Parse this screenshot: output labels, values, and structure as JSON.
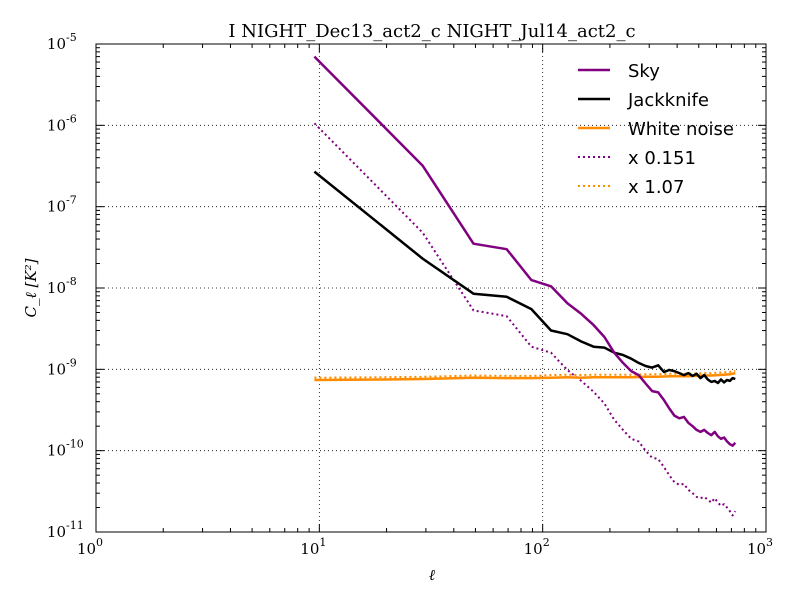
{
  "chart_data": {
    "type": "line",
    "title": "I NIGHT_Dec13_act2_c NIGHT_Jul14_act2_c",
    "xlabel": "ℓ",
    "ylabel": "C_ℓ [K²]",
    "xscale": "log",
    "yscale": "log",
    "xlim": [
      1,
      1000
    ],
    "ylim": [
      1e-11,
      1e-05
    ],
    "grid": true,
    "legend_position": "top-right",
    "x_ticks": [
      {
        "value": 1,
        "base": "10",
        "exp": "0"
      },
      {
        "value": 10,
        "base": "10",
        "exp": "1"
      },
      {
        "value": 100,
        "base": "10",
        "exp": "2"
      },
      {
        "value": 1000,
        "base": "10",
        "exp": "3"
      }
    ],
    "y_ticks": [
      {
        "value": 1e-11,
        "base": "10",
        "exp": "-11"
      },
      {
        "value": 1e-10,
        "base": "10",
        "exp": "-10"
      },
      {
        "value": 1e-09,
        "base": "10",
        "exp": "-9"
      },
      {
        "value": 1e-08,
        "base": "10",
        "exp": "-8"
      },
      {
        "value": 1e-07,
        "base": "10",
        "exp": "-7"
      },
      {
        "value": 1e-06,
        "base": "10",
        "exp": "-6"
      },
      {
        "value": 1e-05,
        "base": "10",
        "exp": "-5"
      }
    ],
    "series": [
      {
        "name": "Sky",
        "color": "#800080",
        "style": "solid",
        "x": [
          9.5,
          29,
          49,
          69,
          89,
          109,
          129,
          149,
          169,
          189,
          209,
          229,
          249,
          269,
          289,
          309,
          329,
          349,
          369,
          389,
          409,
          429,
          449,
          469,
          489,
          509,
          529,
          549,
          569,
          589,
          609,
          629,
          649,
          669,
          689,
          709,
          729
        ],
        "y": [
          7e-06,
          3.2e-07,
          3.5e-08,
          3e-08,
          1.25e-08,
          1.05e-08,
          6.5e-09,
          4.8e-09,
          3.5e-09,
          2.5e-09,
          1.6e-09,
          1.2e-09,
          9.5e-10,
          8.5e-10,
          6.7e-10,
          5.4e-10,
          5.2e-10,
          4.2e-10,
          3.3e-10,
          2.7e-10,
          2.5e-10,
          2.6e-10,
          2.2e-10,
          2e-10,
          1.8e-10,
          1.7e-10,
          1.8e-10,
          1.65e-10,
          1.55e-10,
          1.7e-10,
          1.5e-10,
          1.4e-10,
          1.45e-10,
          1.3e-10,
          1.2e-10,
          1.15e-10,
          1.25e-10
        ]
      },
      {
        "name": "Jackknife",
        "color": "#000000",
        "style": "solid",
        "x": [
          9.5,
          29,
          49,
          69,
          89,
          109,
          129,
          149,
          169,
          189,
          209,
          229,
          249,
          269,
          289,
          309,
          329,
          349,
          369,
          389,
          409,
          429,
          449,
          469,
          489,
          509,
          529,
          549,
          569,
          589,
          609,
          629,
          649,
          669,
          689,
          709,
          729
        ],
        "y": [
          2.7e-07,
          2.3e-08,
          8.5e-09,
          7.8e-09,
          5.5e-09,
          3e-09,
          2.7e-09,
          2.2e-09,
          1.9e-09,
          1.85e-09,
          1.6e-09,
          1.5e-09,
          1.35e-09,
          1.2e-09,
          1.1e-09,
          1.05e-09,
          1.12e-09,
          9.3e-10,
          9.8e-10,
          9.5e-10,
          9e-10,
          8.5e-10,
          9e-10,
          8.3e-10,
          8.8e-10,
          7.8e-10,
          8.5e-10,
          7.5e-10,
          7e-10,
          7.2e-10,
          6.8e-10,
          7.5e-10,
          6.9e-10,
          7.4e-10,
          7.2e-10,
          7.8e-10,
          7.6e-10
        ]
      },
      {
        "name": "White noise",
        "color": "#ff8c00",
        "style": "solid",
        "x": [
          9.5,
          20,
          29,
          49,
          69,
          89,
          109,
          129,
          149,
          169,
          189,
          209,
          249,
          289,
          329,
          369,
          409,
          449,
          489,
          529,
          569,
          609,
          649,
          689,
          729
        ],
        "y": [
          7.4e-10,
          7.5e-10,
          7.6e-10,
          7.9e-10,
          7.8e-10,
          7.8e-10,
          7.9e-10,
          8e-10,
          7.9e-10,
          8e-10,
          8e-10,
          8e-10,
          8e-10,
          8.1e-10,
          8.1e-10,
          8.2e-10,
          8.2e-10,
          8.2e-10,
          8.3e-10,
          8.4e-10,
          8.4e-10,
          8.5e-10,
          8.6e-10,
          8.7e-10,
          9e-10
        ]
      },
      {
        "name": "x 0.151",
        "color": "#800080",
        "style": "dotted",
        "x": [
          9.5,
          29,
          49,
          69,
          89,
          109,
          129,
          149,
          169,
          189,
          209,
          229,
          249,
          269,
          289,
          309,
          329,
          349,
          369,
          389,
          409,
          429,
          449,
          469,
          489,
          509,
          529,
          549,
          569,
          589,
          609,
          629,
          649,
          669,
          689,
          709,
          729
        ],
        "y": [
          1.06e-06,
          4.8e-08,
          5.3e-09,
          4.5e-09,
          1.9e-09,
          1.6e-09,
          9.8e-10,
          7.2e-10,
          5.3e-10,
          3.8e-10,
          2.4e-10,
          1.8e-10,
          1.4e-10,
          1.3e-10,
          1e-10,
          8.2e-11,
          7.9e-11,
          6.3e-11,
          5e-11,
          4.1e-11,
          3.8e-11,
          3.9e-11,
          3.3e-11,
          3e-11,
          2.7e-11,
          2.6e-11,
          2.7e-11,
          2.5e-11,
          2.3e-11,
          2.6e-11,
          2.3e-11,
          2.1e-11,
          2.2e-11,
          2e-11,
          1.8e-11,
          1.6e-11,
          1.8e-11
        ]
      },
      {
        "name": "x 1.07",
        "color": "#ff8c00",
        "style": "dotted",
        "x": [
          9.5,
          20,
          29,
          49,
          69,
          89,
          109,
          129,
          149,
          169,
          189,
          209,
          249,
          289,
          329,
          369,
          409,
          449,
          489,
          529,
          569,
          609,
          649,
          689,
          729
        ],
        "y": [
          7.9e-10,
          8e-10,
          8.1e-10,
          8.4e-10,
          8.3e-10,
          8.3e-10,
          8.5e-10,
          8.6e-10,
          8.5e-10,
          8.6e-10,
          8.6e-10,
          8.6e-10,
          8.6e-10,
          8.7e-10,
          8.7e-10,
          8.8e-10,
          8.8e-10,
          8.8e-10,
          8.9e-10,
          9e-10,
          9e-10,
          9.1e-10,
          9.2e-10,
          9.3e-10,
          9.6e-10
        ]
      }
    ]
  }
}
